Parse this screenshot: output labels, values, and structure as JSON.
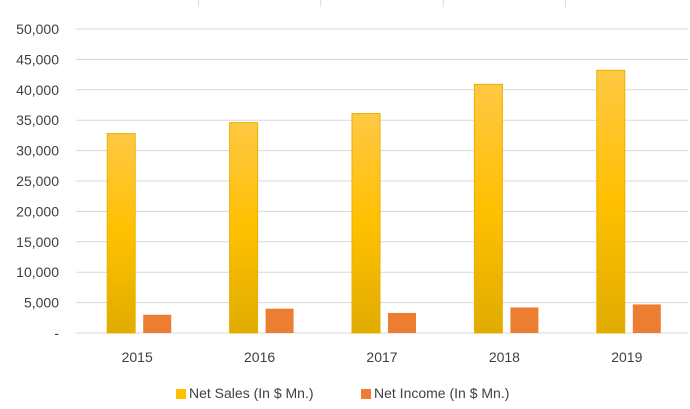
{
  "chart_data": {
    "type": "bar",
    "categories": [
      "2015",
      "2016",
      "2017",
      "2018",
      "2019"
    ],
    "series": [
      {
        "name": "Net Sales (In $ Mn.)",
        "values": [
          32800,
          34600,
          36100,
          40900,
          43200
        ],
        "color": "#FFC000"
      },
      {
        "name": "Net Income (In $ Mn.)",
        "values": [
          3000,
          4000,
          3300,
          4200,
          4700
        ],
        "color": "#ED7D31"
      }
    ],
    "yticks": [
      "-",
      "5,000",
      "10,000",
      "15,000",
      "20,000",
      "25,000",
      "30,000",
      "35,000",
      "40,000",
      "45,000",
      "50,000"
    ],
    "ylim": [
      0,
      50000
    ],
    "grid": true,
    "legend": "bottom"
  }
}
